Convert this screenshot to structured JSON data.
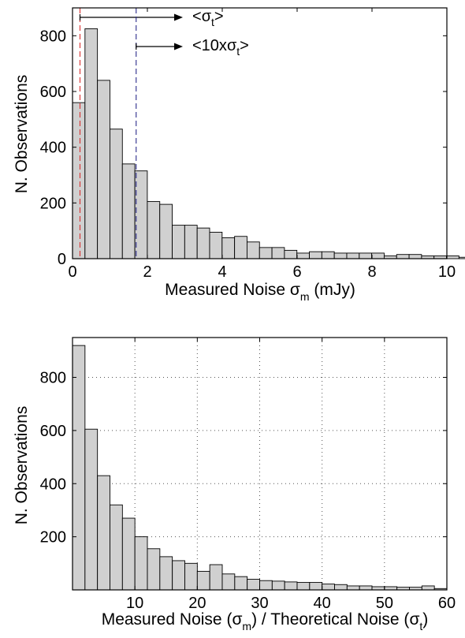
{
  "chart_data": [
    {
      "type": "bar",
      "xlabel_parts": {
        "main": "Measured Noise ",
        "sym": "σ",
        "sub": "m",
        "tail": " (mJy)"
      },
      "ylabel": "N. Observations",
      "xlim": [
        0,
        10
      ],
      "ylim": [
        0,
        900
      ],
      "xticks": [
        "0",
        "2",
        "4",
        "6",
        "8",
        "10"
      ],
      "yticks": [
        "0",
        "200",
        "400",
        "600",
        "800"
      ],
      "grid": false,
      "bin_width": 0.333,
      "bin_start": 0,
      "values": [
        560,
        825,
        640,
        465,
        340,
        315,
        205,
        195,
        120,
        120,
        110,
        95,
        75,
        80,
        60,
        40,
        40,
        30,
        20,
        25,
        25,
        20,
        20,
        20,
        20,
        10,
        15,
        15,
        10,
        10,
        10,
        5,
        10,
        5,
        5
      ],
      "markers": [
        {
          "x": 0.2,
          "color": "#d93030",
          "label_parts": {
            "pre": "<",
            "sym": "σ",
            "sub": "t",
            "post": ">"
          }
        },
        {
          "x": 1.7,
          "color": "#2a2a8a",
          "label_parts": {
            "pre": "<10x",
            "sym": "σ",
            "sub": "t",
            "post": ">"
          }
        }
      ]
    },
    {
      "type": "bar",
      "xlabel_parts": {
        "a": "Measured Noise (",
        "sym1": "σ",
        "sub1": "m",
        "b": ") / Theoretical Noise (",
        "sym2": "σ",
        "sub2": "t",
        "c": ")"
      },
      "ylabel": "N. Observations",
      "xlim": [
        0,
        60
      ],
      "ylim": [
        0,
        950
      ],
      "xticks": [
        "10",
        "20",
        "30",
        "40",
        "50",
        "60"
      ],
      "yticks": [
        "200",
        "400",
        "600",
        "800"
      ],
      "grid": true,
      "bin_width": 2,
      "bin_start": 0,
      "values": [
        920,
        605,
        430,
        320,
        270,
        200,
        155,
        125,
        110,
        100,
        70,
        95,
        60,
        50,
        40,
        35,
        33,
        30,
        28,
        28,
        22,
        20,
        15,
        15,
        12,
        12,
        10,
        10,
        15,
        5
      ]
    }
  ]
}
